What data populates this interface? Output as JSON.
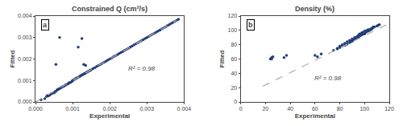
{
  "chart_data": [
    {
      "type": "scatter",
      "title": "Constrained Q (cm³/s)",
      "x_label": "Experimental",
      "y_label": "Fitted",
      "series": [
        {
          "type": "scatter",
          "color": "#243f7a",
          "marker": "circle",
          "x": [
            0.00015,
            0.00025,
            0.0003,
            0.00032,
            0.00035,
            0.00038,
            0.0004,
            0.00042,
            0.00045,
            0.0005,
            0.00052,
            0.00055,
            0.00058,
            0.0006,
            0.00062,
            0.00065,
            0.00068,
            0.0007,
            0.00072,
            0.00075,
            0.00078,
            0.0008,
            0.00082,
            0.00085,
            0.00088,
            0.0009,
            0.00092,
            0.00095,
            0.00098,
            0.001,
            0.00102,
            0.00105,
            0.00108,
            0.0011,
            0.00112,
            0.00115,
            0.00118,
            0.0012,
            0.00122,
            0.00125,
            0.00128,
            0.0013,
            0.00132,
            0.00135,
            0.00138,
            0.0014,
            0.00142,
            0.00145,
            0.00148,
            0.0015,
            0.00155,
            0.0016,
            0.00165,
            0.0017,
            0.00175,
            0.0018,
            0.00185,
            0.0019,
            0.00195,
            0.002,
            0.00205,
            0.0021,
            0.00215,
            0.0022,
            0.00225,
            0.0023,
            0.00235,
            0.0024,
            0.00245,
            0.0025,
            0.00255,
            0.0026,
            0.00265,
            0.0027,
            0.00275,
            0.0028,
            0.00285,
            0.0029,
            0.00295,
            0.003,
            0.00305,
            0.0031,
            0.00315,
            0.0032,
            0.00325,
            0.0033,
            0.00335,
            0.0034,
            0.00345,
            0.0035,
            0.00355,
            0.0036,
            0.00365,
            0.0037,
            0.00375,
            0.0038,
            0.00385,
            0.00055,
            0.00065,
            0.0013,
            0.00135,
            0.00125,
            0.00115
          ],
          "values": [
            0.0001,
            0.00015,
            0.00025,
            0.0003,
            0.00028,
            0.00032,
            0.00035,
            0.00038,
            0.0004,
            0.00042,
            0.00048,
            0.0005,
            0.00055,
            0.00058,
            0.0006,
            0.00062,
            0.00065,
            0.00068,
            0.0007,
            0.00072,
            0.00075,
            0.00078,
            0.0008,
            0.00082,
            0.00085,
            0.00088,
            0.0009,
            0.00092,
            0.00095,
            0.001,
            0.00102,
            0.00105,
            0.00108,
            0.0011,
            0.00112,
            0.00115,
            0.00118,
            0.0012,
            0.00122,
            0.00125,
            0.00128,
            0.0013,
            0.00132,
            0.00135,
            0.00138,
            0.0014,
            0.00142,
            0.00145,
            0.00148,
            0.0015,
            0.00155,
            0.0016,
            0.00165,
            0.0017,
            0.00175,
            0.0018,
            0.00185,
            0.0019,
            0.00195,
            0.002,
            0.00205,
            0.0021,
            0.00215,
            0.0022,
            0.00225,
            0.0023,
            0.00235,
            0.0024,
            0.00245,
            0.0025,
            0.00255,
            0.0026,
            0.00265,
            0.0027,
            0.00275,
            0.0028,
            0.00285,
            0.0029,
            0.00295,
            0.003,
            0.00305,
            0.0031,
            0.00315,
            0.0032,
            0.00325,
            0.0033,
            0.00335,
            0.0034,
            0.00345,
            0.0035,
            0.00355,
            0.0036,
            0.00365,
            0.0037,
            0.00375,
            0.0038,
            0.00385,
            0.00175,
            0.003,
            0.00175,
            0.0017,
            0.00295,
            0.00255
          ]
        },
        {
          "type": "line",
          "color": "#aaaaaa",
          "line_style": "dashed",
          "x": [
            0,
            0.0038
          ],
          "values": [
            0,
            0.0038
          ]
        }
      ],
      "annotations": [
        {
          "text": "R² = 0.98",
          "x": 0.00245,
          "y": 0.00155
        },
        {
          "text": "a"
        }
      ],
      "xlim": [
        0,
        0.004
      ],
      "ylim": [
        0,
        0.004
      ],
      "xticks": [
        {
          "value": 0,
          "label": "0.000"
        },
        0.001,
        0.002,
        0.003,
        0.004
      ],
      "yticks": [
        {
          "value": 0,
          "label": "0.000"
        },
        0.001,
        0.002,
        0.003,
        0.004
      ],
      "grid": false
    },
    {
      "type": "scatter",
      "title": "Density (%)",
      "x_label": "Experimental",
      "y_label": "Fitted",
      "series": [
        {
          "type": "scatter",
          "color": "#243f7a",
          "marker": "circle",
          "x": [
            24,
            25,
            25,
            26,
            35,
            37,
            60,
            62,
            65,
            78,
            80,
            82,
            84,
            85,
            86,
            88,
            89,
            90,
            90,
            91,
            92,
            92,
            93,
            93,
            94,
            94,
            95,
            95,
            95,
            95,
            96,
            96,
            96,
            96,
            97,
            97,
            97,
            98,
            98,
            98,
            98,
            99,
            99,
            99,
            100,
            100,
            100,
            100,
            100,
            101,
            101,
            101,
            102,
            102,
            103,
            103,
            103,
            104,
            104,
            105,
            105,
            106,
            107,
            107,
            108,
            110,
            111,
            112,
            75,
            78,
            80,
            82,
            84,
            86,
            88,
            90,
            92,
            94,
            96,
            98,
            100,
            102,
            104,
            106
          ],
          "values": [
            60,
            62,
            60,
            63,
            62,
            65,
            65,
            63,
            67,
            74,
            76,
            78,
            79,
            80,
            81,
            83,
            84,
            85,
            86,
            87,
            88,
            88,
            89,
            90,
            90,
            91,
            90,
            91,
            92,
            93,
            92,
            93,
            94,
            95,
            93,
            94,
            95,
            94,
            95,
            96,
            97,
            95,
            96,
            97,
            95,
            96,
            97,
            98,
            99,
            97,
            98,
            99,
            99,
            100,
            99,
            100,
            101,
            100,
            101,
            101,
            102,
            103,
            104,
            105,
            105,
            106,
            107,
            108,
            72,
            75,
            78,
            80,
            82,
            84,
            86,
            88,
            90,
            91,
            93,
            95,
            97,
            99,
            100,
            102
          ]
        },
        {
          "type": "line",
          "color": "#aaaaaa",
          "line_style": "dashed",
          "x": [
            18,
            118
          ],
          "values": [
            22,
            108
          ]
        }
      ],
      "annotations": [
        {
          "text": "R² = 0.98",
          "x": 58,
          "y": 33
        },
        {
          "text": "b"
        }
      ],
      "xlim": [
        0,
        120
      ],
      "ylim": [
        0,
        120
      ],
      "xticks": [
        0,
        20,
        40,
        60,
        80,
        100,
        120
      ],
      "yticks": [
        0,
        20,
        40,
        60,
        80,
        100,
        120
      ],
      "grid": false
    }
  ]
}
